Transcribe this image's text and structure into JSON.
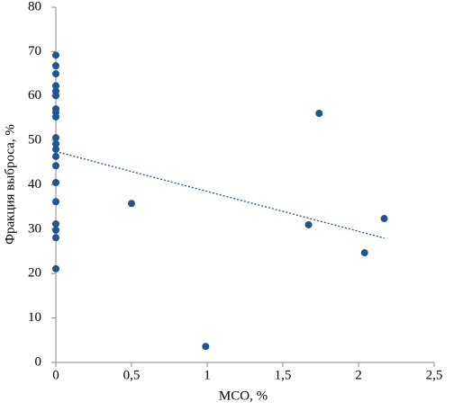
{
  "chart_data": {
    "type": "scatter",
    "x_label": "МСО, %",
    "y_label": "Фракция выброса, %",
    "x": [
      0,
      0,
      0,
      0,
      0,
      0,
      0,
      0,
      0,
      0,
      0,
      0,
      0,
      0,
      0,
      0,
      0,
      0,
      0,
      0,
      0.5,
      0.99,
      1.67,
      1.74,
      2.04,
      2.17
    ],
    "values": [
      69.2,
      66.8,
      65,
      62.3,
      61.1,
      60.1,
      57.1,
      56.3,
      55.3,
      50.6,
      49.2,
      48,
      46.4,
      44.3,
      40.5,
      36.2,
      31.2,
      29.8,
      28.1,
      21.1,
      35.8,
      3.6,
      31,
      56.1,
      24.7,
      32.4
    ],
    "color": "#1f5591",
    "trendline": {
      "x": [
        0,
        2.17
      ],
      "y": [
        47.5,
        28
      ],
      "color": "#1f5591"
    },
    "xlim": [
      0,
      2.5
    ],
    "xticks": [
      0,
      {
        "value": 0.5,
        "label": "0,5"
      },
      1,
      {
        "value": 1.5,
        "label": "1,5"
      },
      2,
      {
        "value": 2.5,
        "label": "2,5"
      }
    ],
    "ylim": [
      0,
      80
    ],
    "yticks": [
      0,
      10,
      20,
      30,
      40,
      50,
      60,
      70,
      80
    ],
    "grid": false
  }
}
